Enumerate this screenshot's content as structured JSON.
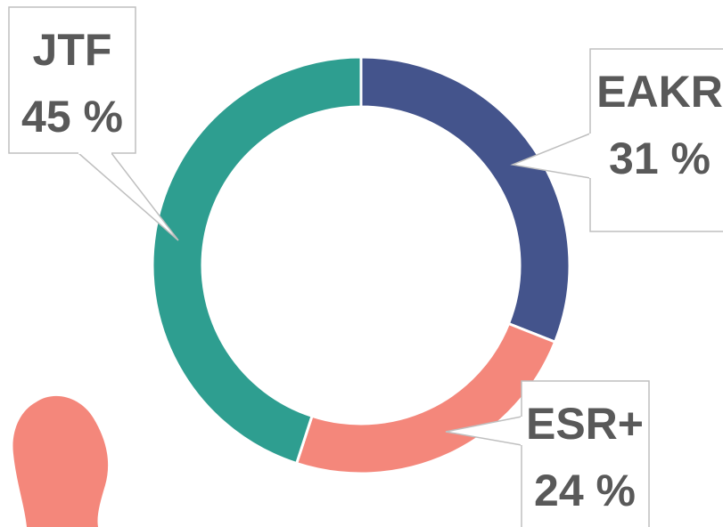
{
  "chart_data": {
    "type": "donut",
    "categories": [
      "EAKR",
      "ESR+",
      "JTF"
    ],
    "values": [
      31,
      24,
      45
    ],
    "value_labels": [
      "31 %",
      "24 %",
      "45 %"
    ],
    "colors": [
      "#44548c",
      "#f4877b",
      "#2e9e90"
    ]
  }
}
